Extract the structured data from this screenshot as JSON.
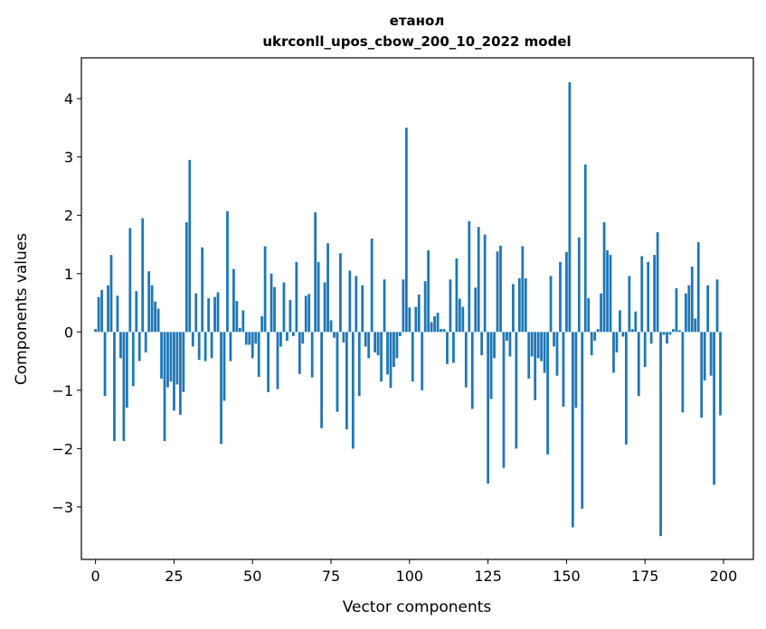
{
  "chart_data": {
    "type": "bar",
    "title": "етанол",
    "subtitle": "ukrconll_upos_cbow_200_10_2022 model",
    "xlabel": "Vector components",
    "ylabel": "Components values",
    "xlim": [
      -4.5,
      209.5
    ],
    "ylim": [
      -3.9,
      4.7
    ],
    "xticks": [
      0,
      25,
      50,
      75,
      100,
      125,
      150,
      175,
      200
    ],
    "yticks": [
      -3,
      -2,
      -1,
      0,
      1,
      2,
      3,
      4
    ],
    "grid": false,
    "legend": "none",
    "bar_color": "#1f77b4",
    "x": [
      0,
      1,
      2,
      3,
      4,
      5,
      6,
      7,
      8,
      9,
      10,
      11,
      12,
      13,
      14,
      15,
      16,
      17,
      18,
      19,
      20,
      21,
      22,
      23,
      24,
      25,
      26,
      27,
      28,
      29,
      30,
      31,
      32,
      33,
      34,
      35,
      36,
      37,
      38,
      39,
      40,
      41,
      42,
      43,
      44,
      45,
      46,
      47,
      48,
      49,
      50,
      51,
      52,
      53,
      54,
      55,
      56,
      57,
      58,
      59,
      60,
      61,
      62,
      63,
      64,
      65,
      66,
      67,
      68,
      69,
      70,
      71,
      72,
      73,
      74,
      75,
      76,
      77,
      78,
      79,
      80,
      81,
      82,
      83,
      84,
      85,
      86,
      87,
      88,
      89,
      90,
      91,
      92,
      93,
      94,
      95,
      96,
      97,
      98,
      99,
      100,
      101,
      102,
      103,
      104,
      105,
      106,
      107,
      108,
      109,
      110,
      111,
      112,
      113,
      114,
      115,
      116,
      117,
      118,
      119,
      120,
      121,
      122,
      123,
      124,
      125,
      126,
      127,
      128,
      129,
      130,
      131,
      132,
      133,
      134,
      135,
      136,
      137,
      138,
      139,
      140,
      141,
      142,
      143,
      144,
      145,
      146,
      147,
      148,
      149,
      150,
      151,
      152,
      153,
      154,
      155,
      156,
      157,
      158,
      159,
      160,
      161,
      162,
      163,
      164,
      165,
      166,
      167,
      168,
      169,
      170,
      171,
      172,
      173,
      174,
      175,
      176,
      177,
      178,
      179,
      180,
      181,
      182,
      183,
      184,
      185,
      186,
      187,
      188,
      189,
      190,
      191,
      192,
      193,
      194,
      195,
      196,
      197,
      198,
      199
    ],
    "values": [
      0.05,
      0.6,
      0.72,
      -1.1,
      0.8,
      1.32,
      -1.87,
      0.62,
      -0.45,
      -1.87,
      -1.3,
      1.78,
      -0.93,
      0.7,
      -0.5,
      1.95,
      -0.35,
      1.04,
      0.8,
      0.52,
      0.4,
      -0.8,
      -1.87,
      -0.95,
      -0.85,
      -1.35,
      -0.9,
      -1.42,
      -1.03,
      1.88,
      2.95,
      -0.25,
      0.66,
      -0.48,
      1.45,
      -0.5,
      0.58,
      -0.45,
      0.6,
      0.68,
      -1.92,
      -1.18,
      2.07,
      -0.5,
      1.08,
      0.53,
      0.07,
      0.37,
      -0.22,
      -0.22,
      -0.45,
      -0.2,
      -0.77,
      0.27,
      1.47,
      -1.03,
      1.0,
      0.77,
      -0.98,
      -0.25,
      0.85,
      -0.15,
      0.55,
      -0.07,
      1.2,
      -0.72,
      -0.2,
      0.62,
      0.65,
      -0.78,
      2.05,
      1.2,
      -1.65,
      0.85,
      1.52,
      0.2,
      -0.1,
      -1.37,
      1.35,
      -0.18,
      -1.67,
      1.05,
      -2.0,
      0.96,
      -1.1,
      0.8,
      -0.25,
      -0.45,
      1.6,
      -0.35,
      -0.4,
      -0.85,
      0.9,
      -0.73,
      -0.96,
      -0.6,
      -0.45,
      -0.07,
      0.9,
      3.5,
      0.42,
      -0.85,
      0.43,
      0.64,
      -1.0,
      0.87,
      1.4,
      0.17,
      0.27,
      0.33,
      0.05,
      0.05,
      -0.55,
      0.9,
      -0.53,
      1.26,
      0.57,
      0.43,
      -0.95,
      1.9,
      -1.32,
      0.76,
      1.8,
      -0.4,
      1.67,
      -2.6,
      -1.15,
      -0.45,
      1.38,
      1.48,
      -2.33,
      -0.15,
      -0.42,
      0.82,
      -2.0,
      0.92,
      1.47,
      0.92,
      -0.8,
      -0.42,
      -1.17,
      -0.45,
      -0.5,
      -0.7,
      -2.1,
      0.96,
      -0.25,
      -0.75,
      1.2,
      -1.28,
      1.37,
      4.28,
      -3.35,
      -1.3,
      1.62,
      -3.03,
      2.87,
      0.58,
      -0.4,
      -0.15,
      0.05,
      0.66,
      1.88,
      1.4,
      1.32,
      -0.7,
      -0.35,
      0.37,
      -0.08,
      -1.93,
      0.96,
      0.05,
      0.35,
      -1.1,
      1.3,
      -0.6,
      1.2,
      -0.2,
      1.32,
      1.71,
      -3.5,
      -0.05,
      -0.2,
      -0.05,
      0.05,
      0.75,
      0.03,
      -1.38,
      0.66,
      0.8,
      1.12,
      0.23,
      1.54,
      -1.47,
      -0.83,
      0.8,
      -0.75,
      -2.62,
      0.9,
      -1.43
    ]
  }
}
